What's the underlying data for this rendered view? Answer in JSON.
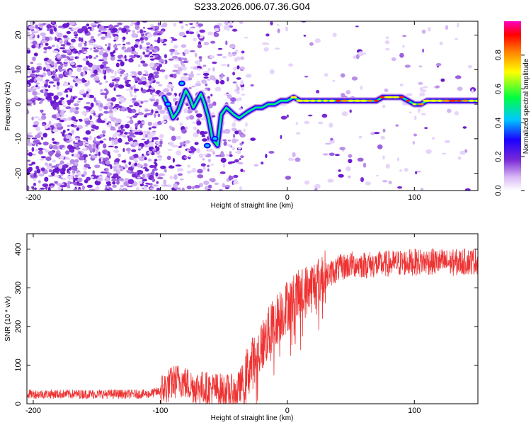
{
  "title": "S233.2026.006.07.36.G04",
  "chart_data": [
    {
      "type": "heatmap",
      "xlabel": "Height of straight line (km)",
      "ylabel": "Frequency (Hz)",
      "xlim": [
        -205,
        150
      ],
      "ylim": [
        -25,
        24
      ],
      "xticks": [
        -200,
        -100,
        0,
        100
      ],
      "yticks": [
        20,
        10,
        0,
        -10,
        -20
      ],
      "ridge": [
        {
          "x": -97,
          "y": 2
        },
        {
          "x": -93,
          "y": -1
        },
        {
          "x": -90,
          "y": -4
        },
        {
          "x": -86,
          "y": -2
        },
        {
          "x": -83,
          "y": 1
        },
        {
          "x": -80,
          "y": 4
        },
        {
          "x": -77,
          "y": 2
        },
        {
          "x": -74,
          "y": -1
        },
        {
          "x": -71,
          "y": 1
        },
        {
          "x": -68,
          "y": 3
        },
        {
          "x": -65,
          "y": 0
        },
        {
          "x": -62,
          "y": -4
        },
        {
          "x": -59,
          "y": -10
        },
        {
          "x": -55,
          "y": -12
        },
        {
          "x": -52,
          "y": -3
        },
        {
          "x": -48,
          "y": -1
        },
        {
          "x": -45,
          "y": -2
        },
        {
          "x": -42,
          "y": -3
        },
        {
          "x": -38,
          "y": -4
        },
        {
          "x": -34,
          "y": -3
        },
        {
          "x": -30,
          "y": -2
        },
        {
          "x": -25,
          "y": -1
        },
        {
          "x": -20,
          "y": -1
        },
        {
          "x": -15,
          "y": 0
        },
        {
          "x": -10,
          "y": 0
        },
        {
          "x": -5,
          "y": 1
        },
        {
          "x": 0,
          "y": 1
        },
        {
          "x": 5,
          "y": 2
        },
        {
          "x": 10,
          "y": 1
        },
        {
          "x": 15,
          "y": 1
        },
        {
          "x": 20,
          "y": 1
        },
        {
          "x": 25,
          "y": 1
        },
        {
          "x": 30,
          "y": 1
        },
        {
          "x": 35,
          "y": 1
        },
        {
          "x": 40,
          "y": 1
        },
        {
          "x": 45,
          "y": 1
        },
        {
          "x": 50,
          "y": 1
        },
        {
          "x": 55,
          "y": 1
        },
        {
          "x": 60,
          "y": 1
        },
        {
          "x": 65,
          "y": 1
        },
        {
          "x": 70,
          "y": 1
        },
        {
          "x": 75,
          "y": 2
        },
        {
          "x": 80,
          "y": 2
        },
        {
          "x": 85,
          "y": 2
        },
        {
          "x": 90,
          "y": 2
        },
        {
          "x": 95,
          "y": 1
        },
        {
          "x": 100,
          "y": 0
        },
        {
          "x": 105,
          "y": 0
        },
        {
          "x": 110,
          "y": 1
        },
        {
          "x": 115,
          "y": 1
        },
        {
          "x": 120,
          "y": 1
        },
        {
          "x": 125,
          "y": 1
        },
        {
          "x": 130,
          "y": 1
        },
        {
          "x": 135,
          "y": 1
        },
        {
          "x": 140,
          "y": 1
        },
        {
          "x": 145,
          "y": 1
        },
        {
          "x": 150,
          "y": 1
        }
      ],
      "colorbar": {
        "label": "Normalized spectral amplitude",
        "range": [
          0,
          1
        ],
        "ticks": [
          "0.0",
          "0.2",
          "0.4",
          "0.6",
          "0.8"
        ],
        "colors": [
          "#ffffff",
          "#d9b8f5",
          "#7b2bd6",
          "#1a00ff",
          "#00c8ff",
          "#00ff40",
          "#ffff00",
          "#ff8000",
          "#ff0000",
          "#ff00c0"
        ]
      }
    },
    {
      "type": "line",
      "xlabel": "Height of straight line (km)",
      "ylabel": "SNR (10 * v/v)",
      "xlim": [
        -205,
        150
      ],
      "ylim": [
        0,
        440
      ],
      "xticks": [
        -200,
        -100,
        0,
        100
      ],
      "yticks": [
        400,
        300,
        200,
        100,
        0
      ],
      "color": "#ee3333",
      "trend": [
        {
          "x": -205,
          "y": 25
        },
        {
          "x": -110,
          "y": 25
        },
        {
          "x": -100,
          "y": 32
        },
        {
          "x": -90,
          "y": 55
        },
        {
          "x": -85,
          "y": 62
        },
        {
          "x": -75,
          "y": 45
        },
        {
          "x": -60,
          "y": 38
        },
        {
          "x": -40,
          "y": 30
        },
        {
          "x": -30,
          "y": 90
        },
        {
          "x": -20,
          "y": 150
        },
        {
          "x": -10,
          "y": 210
        },
        {
          "x": 0,
          "y": 255
        },
        {
          "x": 10,
          "y": 280
        },
        {
          "x": 20,
          "y": 305
        },
        {
          "x": 30,
          "y": 330
        },
        {
          "x": 40,
          "y": 350
        },
        {
          "x": 50,
          "y": 360
        },
        {
          "x": 70,
          "y": 360
        },
        {
          "x": 90,
          "y": 365
        },
        {
          "x": 110,
          "y": 368
        },
        {
          "x": 130,
          "y": 365
        },
        {
          "x": 150,
          "y": 370
        }
      ]
    }
  ]
}
